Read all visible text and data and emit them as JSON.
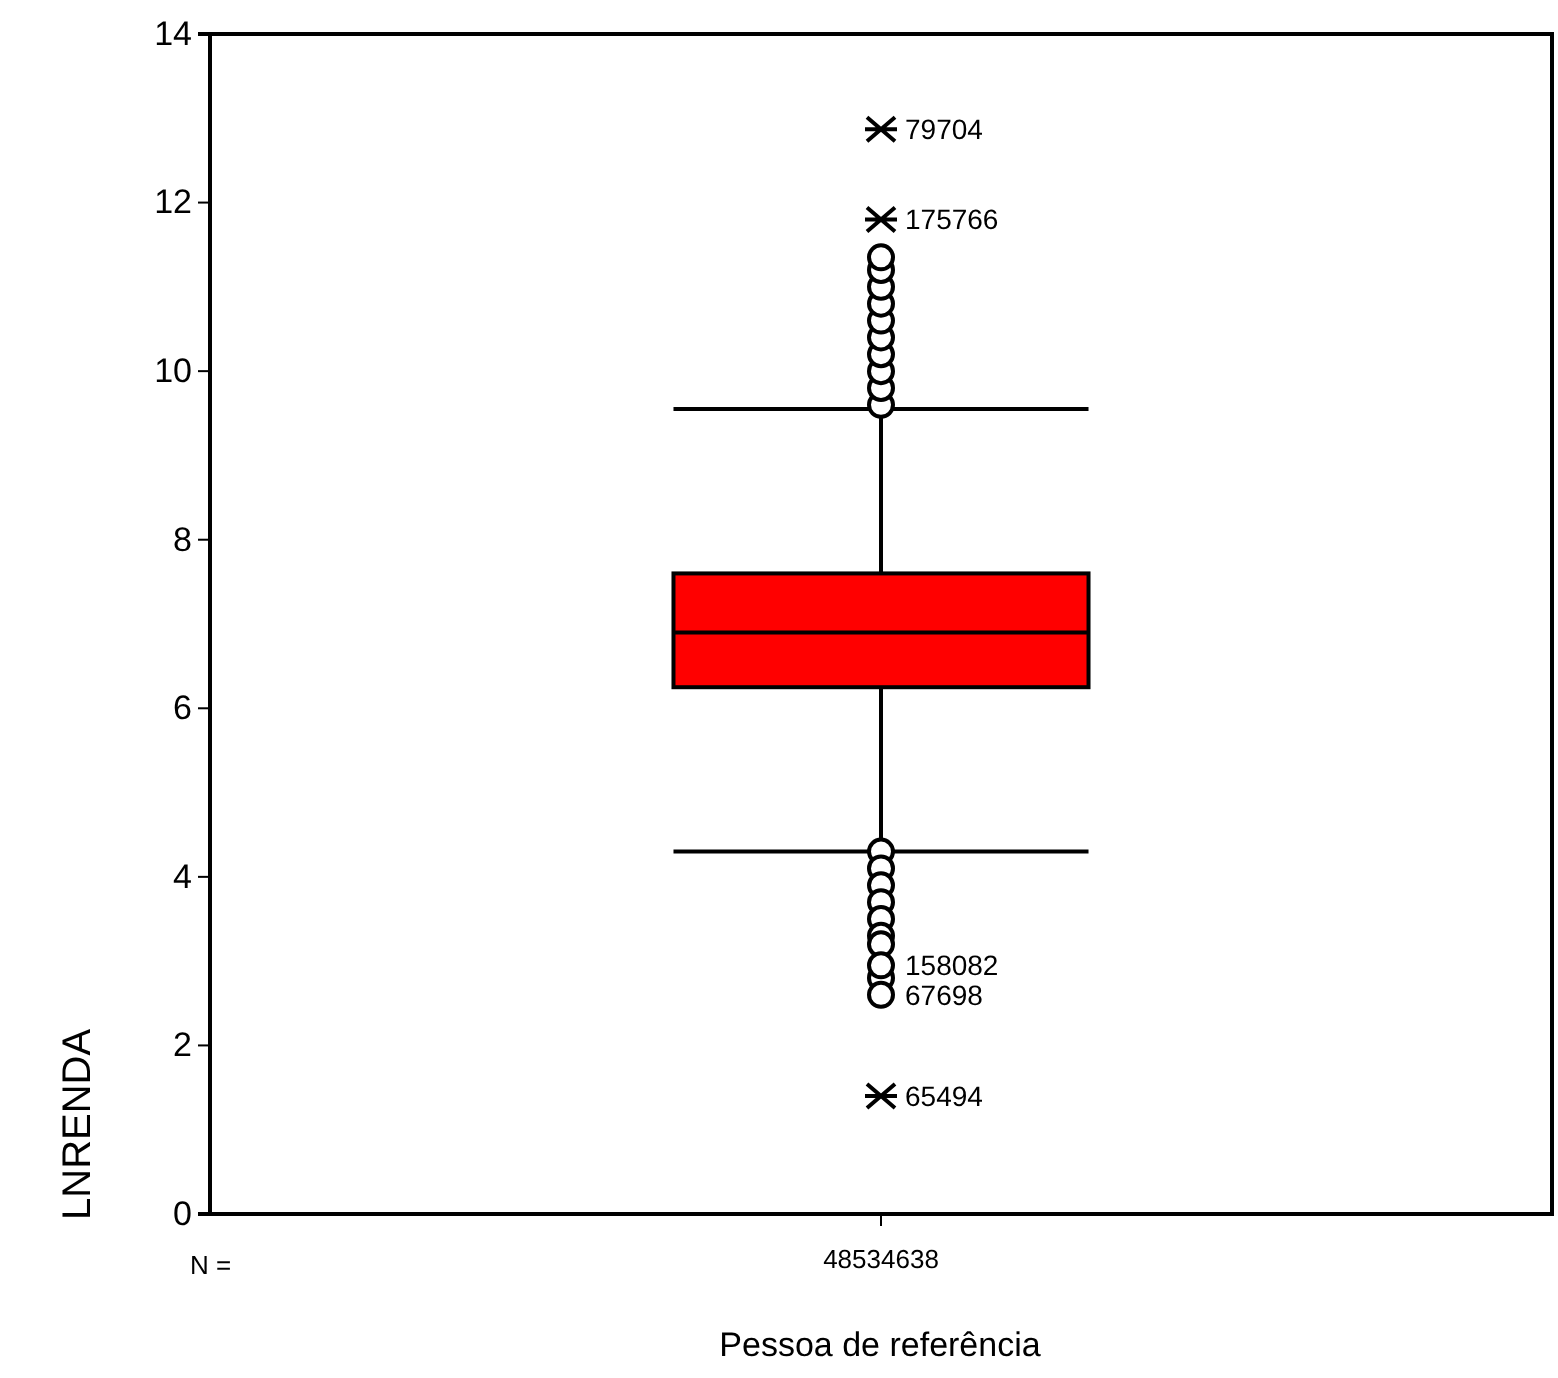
{
  "chart_data": {
    "type": "box",
    "xlabel": "Pessoa de referência",
    "ylabel": "LNRENDA",
    "categories": [
      "48534638"
    ],
    "boxes": [
      {
        "low": 4.3,
        "q1": 6.25,
        "median": 6.9,
        "q3": 7.6,
        "high": 9.55,
        "outliers": [
          9.6,
          9.8,
          10.0,
          10.2,
          10.4,
          10.6,
          10.8,
          11.0,
          11.2,
          11.35,
          4.3,
          4.1,
          3.9,
          3.7,
          3.5,
          3.3,
          3.2,
          2.8
        ]
      }
    ],
    "colors": [
      "#ff0000"
    ],
    "series": [
      {
        "type": "scatter",
        "x": [
          "48534638",
          "48534638",
          "48534638",
          "48534638",
          "48534638"
        ],
        "values": [
          12.87,
          11.8,
          2.95,
          2.6,
          1.4
        ],
        "color": "#000000"
      }
    ],
    "ylim": [
      0,
      14
    ],
    "yticks": [
      0,
      2,
      4,
      6,
      8,
      10,
      12,
      14
    ],
    "annotations": [
      {
        "text": "79704",
        "x": "48534638",
        "y": 12.87
      },
      {
        "text": "175766",
        "x": "48534638",
        "y": 11.8
      },
      {
        "text": "158082",
        "x": "48534638",
        "y": 2.95
      },
      {
        "text": "67698",
        "x": "48534638",
        "y": 2.6
      },
      {
        "text": "65494",
        "x": "48534638",
        "y": 1.4
      },
      "N ="
    ]
  }
}
